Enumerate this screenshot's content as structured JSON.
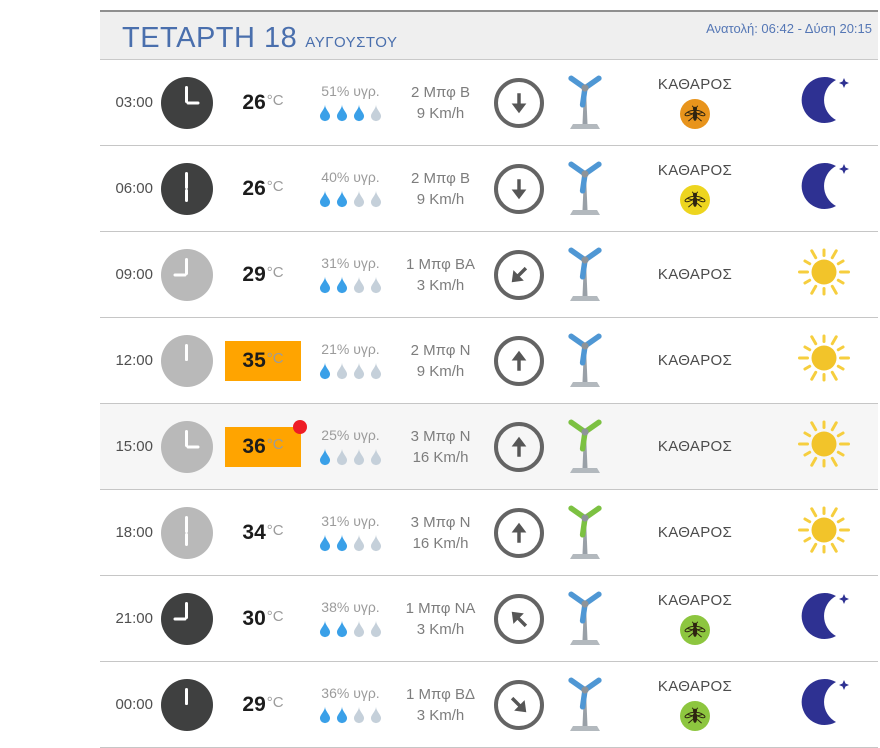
{
  "header": {
    "day": "ΤΕΤΑΡΤΗ",
    "date": "18",
    "month": "ΑΥΓΟΥΣΤΟΥ",
    "sun_info": "Ανατολή: 06:42 - Δύση 20:15"
  },
  "colors": {
    "title_blue": "#4a6fad",
    "sun_info_blue": "#5577b5",
    "temp_highlight_orange": "#ffa400",
    "max_dot_red": "#ee1c25",
    "drop_filled": "#3aa0e8",
    "drop_empty": "#c5d0da",
    "clock_dark": "#3f4040",
    "clock_light": "#b9b9b9",
    "blade_blue": "#4f97d4",
    "blade_green": "#7cc142",
    "mosquito_orange": "#e8941c",
    "mosquito_yellow": "#edd51f",
    "mosquito_green": "#8dc63f",
    "moon_navy": "#2e3192",
    "sun_yellow": "#f2c42a",
    "sun_rays": "#f6ce3e"
  },
  "rows": [
    {
      "time": "03:00",
      "clock_style": "dark",
      "hour_angle": 90,
      "temp": "26",
      "temp_unit": "°C",
      "highlight": false,
      "max_dot": false,
      "humidity": "51% υγρ.",
      "drops_filled": 3,
      "wind": "2 Μπφ Β",
      "speed": "9 Km/h",
      "arrow_deg": 180,
      "blade": "blue",
      "condition": "ΚΑΘΑΡΟΣ",
      "mosquito": "orange",
      "sky": "moon",
      "shaded": false
    },
    {
      "time": "06:00",
      "clock_style": "dark",
      "hour_angle": 180,
      "temp": "26",
      "temp_unit": "°C",
      "highlight": false,
      "max_dot": false,
      "humidity": "40% υγρ.",
      "drops_filled": 2,
      "wind": "2 Μπφ Β",
      "speed": "9 Km/h",
      "arrow_deg": 180,
      "blade": "blue",
      "condition": "ΚΑΘΑΡΟΣ",
      "mosquito": "yellow",
      "sky": "moon",
      "shaded": false
    },
    {
      "time": "09:00",
      "clock_style": "light",
      "hour_angle": 270,
      "temp": "29",
      "temp_unit": "°C",
      "highlight": false,
      "max_dot": false,
      "humidity": "31% υγρ.",
      "drops_filled": 2,
      "wind": "1 Μπφ ΒΑ",
      "speed": "3 Km/h",
      "arrow_deg": 225,
      "blade": "blue",
      "condition": "ΚΑΘΑΡΟΣ",
      "mosquito": null,
      "sky": "sun",
      "shaded": false
    },
    {
      "time": "12:00",
      "clock_style": "light",
      "hour_angle": 0,
      "temp": "35",
      "temp_unit": "°C",
      "highlight": true,
      "max_dot": false,
      "humidity": "21% υγρ.",
      "drops_filled": 1,
      "wind": "2 Μπφ Ν",
      "speed": "9 Km/h",
      "arrow_deg": 0,
      "blade": "blue",
      "condition": "ΚΑΘΑΡΟΣ",
      "mosquito": null,
      "sky": "sun",
      "shaded": false
    },
    {
      "time": "15:00",
      "clock_style": "light",
      "hour_angle": 90,
      "temp": "36",
      "temp_unit": "°C",
      "highlight": true,
      "max_dot": true,
      "humidity": "25% υγρ.",
      "drops_filled": 1,
      "wind": "3 Μπφ Ν",
      "speed": "16 Km/h",
      "arrow_deg": 0,
      "blade": "green",
      "condition": "ΚΑΘΑΡΟΣ",
      "mosquito": null,
      "sky": "sun",
      "shaded": true
    },
    {
      "time": "18:00",
      "clock_style": "light",
      "hour_angle": 180,
      "temp": "34",
      "temp_unit": "°C",
      "highlight": false,
      "max_dot": false,
      "humidity": "31% υγρ.",
      "drops_filled": 2,
      "wind": "3 Μπφ Ν",
      "speed": "16 Km/h",
      "arrow_deg": 0,
      "blade": "green",
      "condition": "ΚΑΘΑΡΟΣ",
      "mosquito": null,
      "sky": "sun",
      "shaded": false
    },
    {
      "time": "21:00",
      "clock_style": "dark",
      "hour_angle": 270,
      "temp": "30",
      "temp_unit": "°C",
      "highlight": false,
      "max_dot": false,
      "humidity": "38% υγρ.",
      "drops_filled": 2,
      "wind": "1 Μπφ ΝΑ",
      "speed": "3 Km/h",
      "arrow_deg": 315,
      "blade": "blue",
      "condition": "ΚΑΘΑΡΟΣ",
      "mosquito": "green",
      "sky": "moon",
      "shaded": false
    },
    {
      "time": "00:00",
      "clock_style": "dark",
      "hour_angle": 0,
      "temp": "29",
      "temp_unit": "°C",
      "highlight": false,
      "max_dot": false,
      "humidity": "36% υγρ.",
      "drops_filled": 2,
      "wind": "1 Μπφ ΒΔ",
      "speed": "3 Km/h",
      "arrow_deg": 135,
      "blade": "blue",
      "condition": "ΚΑΘΑΡΟΣ",
      "mosquito": "green",
      "sky": "moon",
      "shaded": false
    }
  ]
}
